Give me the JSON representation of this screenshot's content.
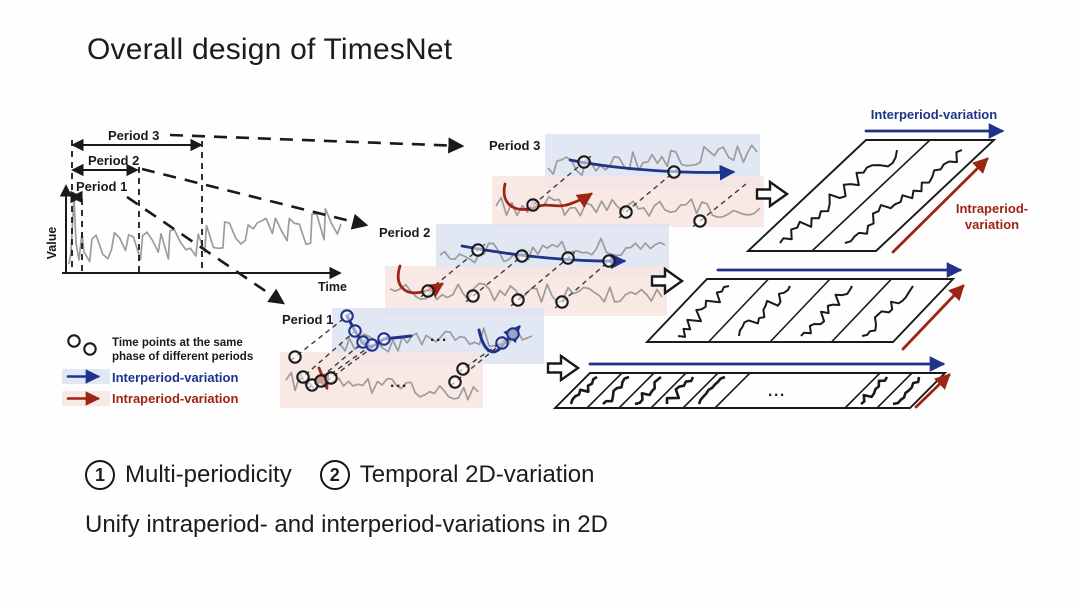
{
  "title": "Overall design of TimesNet",
  "colors": {
    "ink": "#1a1a1a",
    "blue": "#20338a",
    "red": "#9e2413",
    "blueBand": "#dde3f2",
    "pinkBand": "#f7e5e1",
    "gray": "#9c9c9c"
  },
  "axis": {
    "y_label": "Value",
    "x_label": "Time"
  },
  "periods": {
    "p1": "Period 1",
    "p2": "Period 2",
    "p3": "Period 3"
  },
  "legend": {
    "points_line1": "Time points at the same",
    "points_line2": "phase of different periods",
    "inter": "Interperiod-variation",
    "intra": "Intraperiod-variation"
  },
  "right": {
    "inter": "Interperiod-variation",
    "intra_line1": "Intraperiod-",
    "intra_line2": "variation"
  },
  "ellipsis": "...",
  "footer": {
    "items": [
      {
        "num": "1",
        "label": "Multi-periodicity"
      },
      {
        "num": "2",
        "label": "Temporal 2D-variation"
      }
    ],
    "line2": "Unify intraperiod- and interperiod-variations in 2D"
  }
}
